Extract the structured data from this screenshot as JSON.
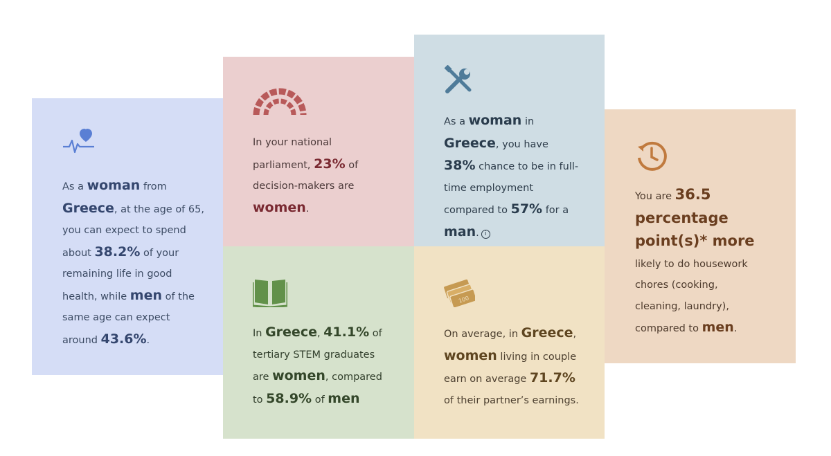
{
  "health": {
    "p1": "As a ",
    "b1": "woman",
    "p2": " from ",
    "b2": "Greece",
    "p3": ", at the age of 65, you can expect to spend about ",
    "b3": "38.2%",
    "p4": " of your remaining life in good health, while ",
    "b4": "men",
    "p5": " of the same age can expect around ",
    "b5": "43.6%",
    "p6": "."
  },
  "parliament": {
    "p1": "In your national parliament, ",
    "b1": "23%",
    "p2": " of decision-makers are ",
    "b2": "women",
    "p3": "."
  },
  "employment": {
    "p1": "As a ",
    "b1": "woman",
    "p2": " in ",
    "b2": "Greece",
    "p3": ", you have ",
    "b3": "38%",
    "p4": " chance to be in full-time employment compared to ",
    "b4": "57%",
    "p5": " for a ",
    "b5": "man",
    "p6": ".",
    "info": "i"
  },
  "housework": {
    "p1": "You are ",
    "b1": "36.5 percentage point(s)* more",
    "p2": " likely to do housework chores (cooking, cleaning, laundry), compared to ",
    "b2": "men",
    "p3": "."
  },
  "stem": {
    "p1": "In ",
    "b1": "Greece",
    "p2": ", ",
    "b2": "41.1%",
    "p3": " of tertiary STEM graduates are ",
    "b3": "women",
    "p4": ", compared to ",
    "b4": "58.9%",
    "p5": " of ",
    "b5": "men"
  },
  "earnings": {
    "p1": "On average, in ",
    "b1": "Greece",
    "p2": ", ",
    "b2": "women",
    "p3": " living in couple earn on average ",
    "b3": "71.7%",
    "p4": " of their partner’s earnings.",
    "note_label": "100"
  },
  "colors": {
    "health": "#d5ddf6",
    "parliament": "#ebcfcf",
    "employment": "#cfdde4",
    "housework": "#eed8c3",
    "stem": "#d6e2cc",
    "earnings": "#f1e2c4"
  },
  "icons": [
    "heartbeat-icon",
    "parliament-icon",
    "tools-icon",
    "clock-icon",
    "book-icon",
    "money-icon"
  ]
}
